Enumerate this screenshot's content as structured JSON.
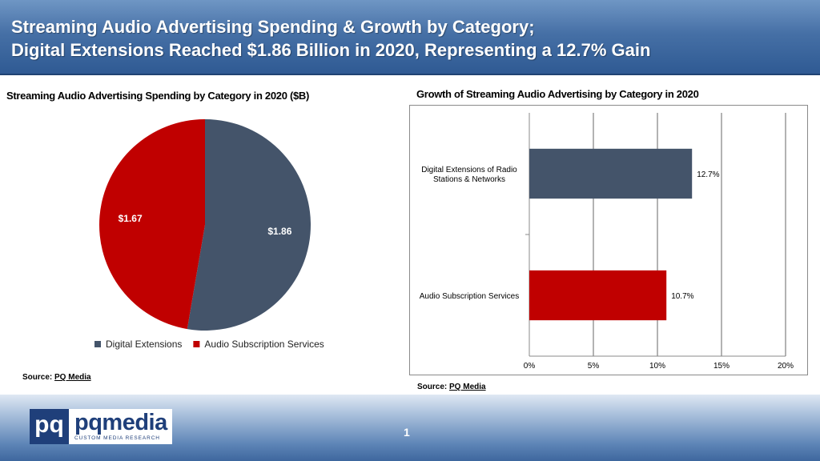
{
  "header": {
    "line1": "Streaming Audio Advertising Spending & Growth by Category;",
    "line2": "Digital Extensions Reached $1.86 Billion in 2020, Representing a 12.7% Gain"
  },
  "chart_data": [
    {
      "type": "pie",
      "title": "Streaming Audio Advertising Spending by Category in 2020 ($B)",
      "slices": [
        {
          "label": "Digital Extensions",
          "value": 1.86,
          "value_label": "$1.86",
          "color": "#44546a"
        },
        {
          "label": "Audio Subscription Services",
          "value": 1.67,
          "value_label": "$1.67",
          "color": "#c00000"
        }
      ],
      "legend_position": "bottom"
    },
    {
      "type": "bar",
      "orientation": "horizontal",
      "title": "Growth of Streaming Audio Advertising by Category in 2020",
      "categories": [
        "Digital Extensions of Radio Stations & Networks",
        "Audio Subscription Services"
      ],
      "category_lines": [
        [
          "Digital Extensions of Radio",
          "Stations & Networks"
        ],
        [
          "Audio Subscription Services"
        ]
      ],
      "values": [
        12.7,
        10.7
      ],
      "value_labels": [
        "12.7%",
        "10.7%"
      ],
      "colors": [
        "#44546a",
        "#c00000"
      ],
      "xlim": [
        0,
        20
      ],
      "x_ticks": [
        0,
        5,
        10,
        15,
        20
      ],
      "x_tick_labels": [
        "0%",
        "5%",
        "10%",
        "15%",
        "20%"
      ],
      "grid": true
    }
  ],
  "sources": {
    "prefix": "Source: ",
    "pie": "PQ Media",
    "bar": "PQ Media"
  },
  "footer": {
    "logo_mark": "pq",
    "logo_name": "pqmedia",
    "logo_tagline": "CUSTOM MEDIA RESEARCH",
    "page_number": "1"
  }
}
